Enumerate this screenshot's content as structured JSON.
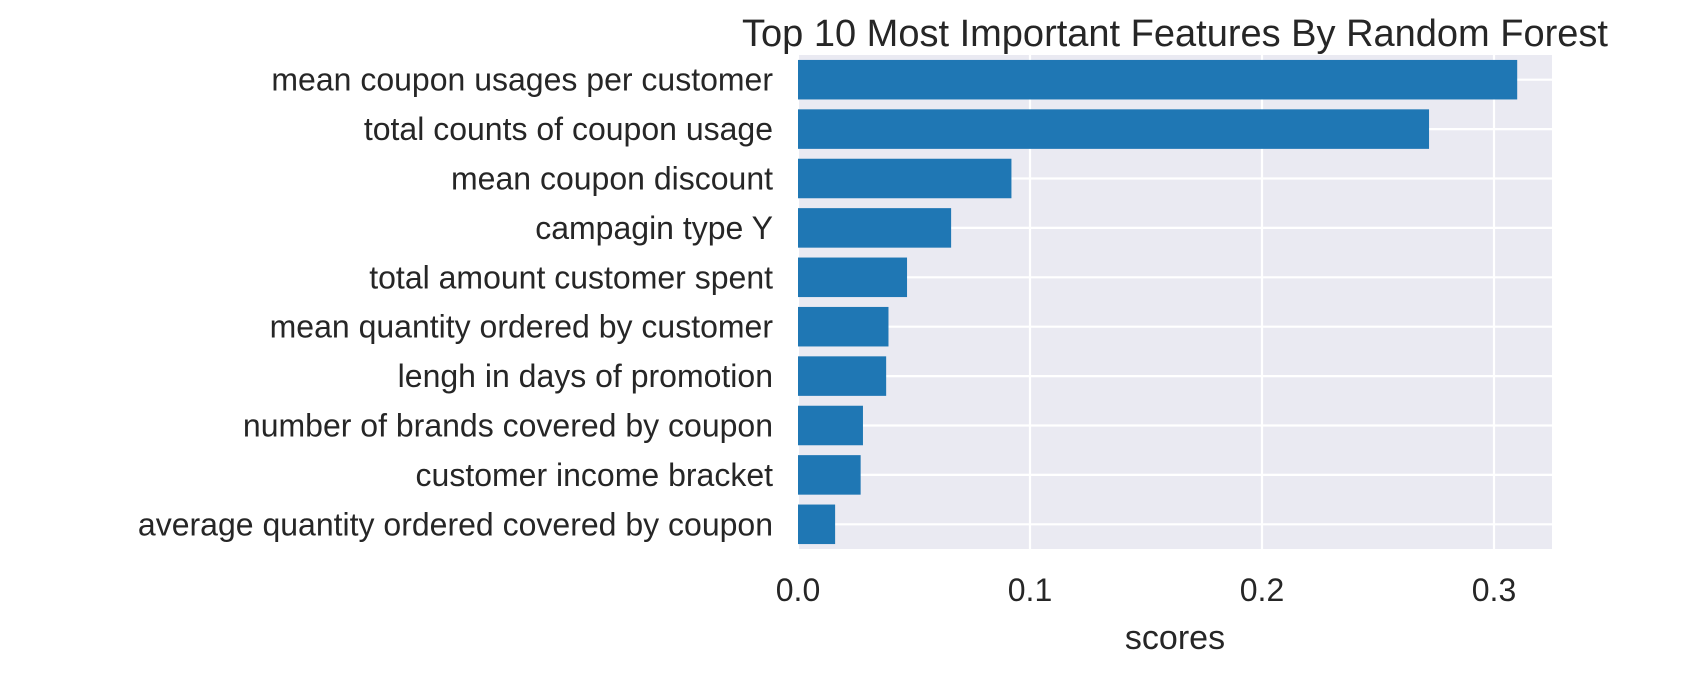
{
  "chart_data": {
    "type": "bar",
    "orientation": "horizontal",
    "title": "Top 10 Most Important Features By Random Forest",
    "xlabel": "scores",
    "ylabel": "",
    "categories": [
      "mean coupon usages per customer",
      "total counts of coupon usage",
      "mean coupon discount",
      "campagin type Y",
      "total amount customer spent",
      "mean quantity ordered by customer",
      "lengh in days of promotion",
      "number of brands covered by coupon",
      "customer income bracket",
      "average quantity ordered covered by coupon"
    ],
    "values": [
      0.31,
      0.272,
      0.092,
      0.066,
      0.047,
      0.039,
      0.038,
      0.028,
      0.027,
      0.016
    ],
    "xlim": [
      0,
      0.325
    ],
    "x_ticks": [
      0.0,
      0.1,
      0.2,
      0.3
    ],
    "x_tick_labels": [
      "0.0",
      "0.1",
      "0.2",
      "0.3"
    ],
    "grid": true,
    "style": "seaborn-darkgrid",
    "colors": {
      "bar": "#1f77b4",
      "plot_background": "#eaeaf2",
      "grid": "#ffffff",
      "text": "#262626"
    }
  }
}
